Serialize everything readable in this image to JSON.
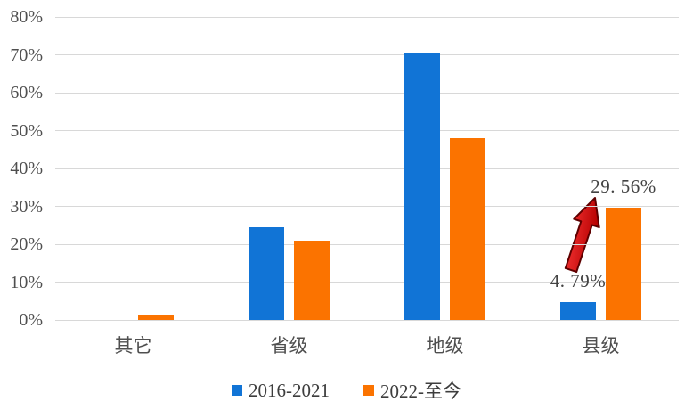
{
  "chart_data": {
    "type": "bar",
    "title": "",
    "xlabel": "",
    "ylabel": "",
    "categories": [
      "其它",
      "省级",
      "地级",
      "县级"
    ],
    "series": [
      {
        "name": "2016-2021",
        "color": "#1174d6",
        "values": [
          0,
          24.5,
          70.5,
          4.79
        ]
      },
      {
        "name": "2022-至今",
        "color": "#fb7300",
        "values": [
          1.3,
          21,
          48,
          29.56
        ]
      }
    ],
    "yticks": [
      "0%",
      "10%",
      "20%",
      "30%",
      "40%",
      "50%",
      "60%",
      "70%",
      "80%"
    ],
    "ylim": [
      0,
      80
    ],
    "grid": true,
    "legend_position": "bottom",
    "data_labels": [
      {
        "series": 0,
        "category": 3,
        "text": "4. 79%"
      },
      {
        "series": 1,
        "category": 3,
        "text": "29. 56%"
      }
    ],
    "annotations": [
      {
        "type": "arrow",
        "color": "#e01111",
        "description": "red arrow pointing up from the 4.79% bar to the 29.56% bar"
      }
    ]
  },
  "colors": {
    "grid": "#d8d8d8",
    "axis_text": "#4f4f4f",
    "data_label_text": "#434343",
    "arrow_fill_top": "#ff3b3b",
    "arrow_fill_bottom": "#b40000",
    "arrow_stroke": "#5e0000"
  }
}
